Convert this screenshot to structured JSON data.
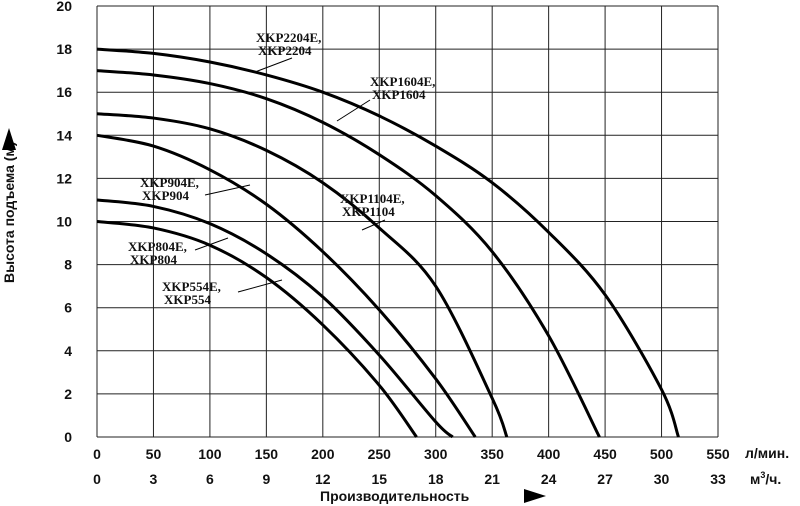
{
  "chart_data": {
    "type": "line",
    "ylabel": "Высота подъема (м)",
    "xlabel": "Производительность",
    "x_unit_primary": "л/мин.",
    "x_unit_secondary_base": "м",
    "x_unit_secondary_sup": "3",
    "x_unit_secondary_tail": "/ч.",
    "ylim": [
      0,
      20
    ],
    "xlim": [
      0,
      550
    ],
    "y_ticks": [
      "0",
      "2",
      "4",
      "6",
      "8",
      "10",
      "12",
      "14",
      "16",
      "18",
      "20"
    ],
    "x_ticks_primary": [
      "0",
      "50",
      "100",
      "150",
      "200",
      "250",
      "300",
      "350",
      "400",
      "450",
      "500",
      "550"
    ],
    "x_ticks_secondary": [
      "0",
      "3",
      "6",
      "9",
      "12",
      "15",
      "18",
      "21",
      "24",
      "27",
      "30",
      "33"
    ],
    "grid": true,
    "series": [
      {
        "id": "s554",
        "label_lines": [
          "XKP554E,",
          "XKP554"
        ],
        "x": [
          0,
          50,
          100,
          150,
          200,
          250,
          283
        ],
        "y": [
          10,
          9.7,
          8.9,
          7.4,
          5.2,
          2.4,
          0
        ]
      },
      {
        "id": "s804",
        "label_lines": [
          "XKP804E,",
          "XKP804"
        ],
        "x": [
          0,
          50,
          100,
          150,
          200,
          250,
          300,
          315
        ],
        "y": [
          11,
          10.7,
          9.9,
          8.5,
          6.5,
          3.8,
          0.7,
          0
        ]
      },
      {
        "id": "s904",
        "label_lines": [
          "XKP904E,",
          "XKP904"
        ],
        "x": [
          0,
          50,
          100,
          150,
          200,
          250,
          300,
          335
        ],
        "y": [
          14,
          13.5,
          12.4,
          10.8,
          8.6,
          5.9,
          2.7,
          0
        ]
      },
      {
        "id": "s1104",
        "label_lines": [
          "XKP1104E,",
          "XKP1104"
        ],
        "x": [
          0,
          50,
          100,
          150,
          200,
          250,
          300,
          350,
          363
        ],
        "y": [
          15,
          14.8,
          14.3,
          13.3,
          11.8,
          9.7,
          7.0,
          1.8,
          0
        ]
      },
      {
        "id": "s1604",
        "label_lines": [
          "XKP1604E,",
          "XKP1604"
        ],
        "x": [
          0,
          50,
          100,
          150,
          200,
          250,
          300,
          350,
          400,
          445
        ],
        "y": [
          17,
          16.8,
          16.4,
          15.7,
          14.6,
          13.1,
          11.2,
          8.6,
          4.7,
          0
        ]
      },
      {
        "id": "s2204",
        "label_lines": [
          "XKP2204E,",
          "XKP2204"
        ],
        "x": [
          0,
          50,
          100,
          150,
          200,
          250,
          300,
          350,
          400,
          450,
          500,
          515
        ],
        "y": [
          18,
          17.8,
          17.4,
          16.8,
          16.0,
          14.9,
          13.5,
          11.8,
          9.5,
          6.6,
          2.2,
          0
        ]
      }
    ]
  }
}
